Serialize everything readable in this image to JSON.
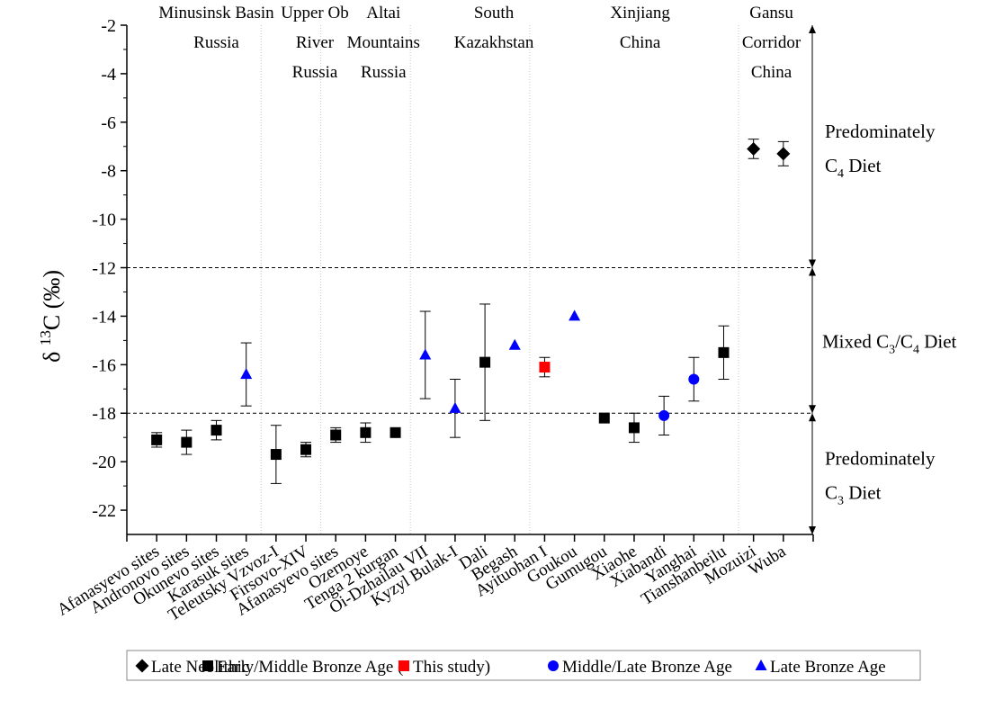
{
  "chart_data": {
    "type": "scatter",
    "title": "",
    "xlabel": "",
    "ylabel": {
      "prefix": "δ",
      "sup": "13",
      "main": "C (‰)"
    },
    "ylim": [
      -23,
      -2
    ],
    "yticks": [
      -2,
      -4,
      -6,
      -8,
      -10,
      -12,
      -14,
      -16,
      -18,
      -20,
      -22
    ],
    "grid": false,
    "categories": [
      "Afanasyevo sites",
      "Andronovo sites",
      "Okunevo sites",
      "Karasuk sites",
      "Teleutsky Vzvoz-I",
      "Firsovo-XIV",
      "Afanasyevo sites",
      "Ozernoye",
      "Tenga 2 kurgan",
      "Oi-Dzhailau VII",
      "Kyzyl Bulak-I",
      "Dali",
      "Begash",
      "Ayituohan I",
      "Goukou",
      "Gumugou",
      "Xiaohe",
      "Xiabandi",
      "Yanghai",
      "Tianshanbeilu",
      "Mozuizi",
      "Wuba"
    ],
    "series": [
      {
        "name": "Late Neolithic",
        "marker": "diamond",
        "color": "#000000",
        "points": [
          {
            "x": "Mozuizi",
            "y": -7.1,
            "err": 0.4
          },
          {
            "x": "Wuba",
            "y": -7.3,
            "err": 0.5
          }
        ]
      },
      {
        "name": "Early/Middle Bronze Age (",
        "marker": "square",
        "color": "#000000",
        "points": [
          {
            "x": "Afanasyevo sites",
            "y": -19.1,
            "err": 0.3
          },
          {
            "x": "Andronovo sites",
            "y": -19.2,
            "err": 0.5
          },
          {
            "x": "Okunevo sites",
            "y": -18.7,
            "err": 0.4
          },
          {
            "x": "Teleutsky Vzvoz-I",
            "y": -19.7,
            "err": 1.2
          },
          {
            "x": "Firsovo-XIV",
            "y": -19.5,
            "err": 0.3
          },
          {
            "x": "Afanasyevo sites",
            "y": -18.9,
            "err": 0.3
          },
          {
            "x": "Ozernoye",
            "y": -18.8,
            "err": 0.4
          },
          {
            "x": "Tenga 2 kurgan",
            "y": -18.8,
            "err": 0
          },
          {
            "x": "Dali",
            "y": -15.9,
            "err": 2.4
          },
          {
            "x": "Gumugou",
            "y": -18.2,
            "err": 0
          },
          {
            "x": "Xiaohe",
            "y": -18.6,
            "err": 0.6
          },
          {
            "x": "Tianshanbeilu",
            "y": -15.5,
            "err": 1.1
          }
        ]
      },
      {
        "name": "This study)",
        "marker": "square",
        "color": "#ff0000",
        "points": [
          {
            "x": "Ayituohan I",
            "y": -16.1,
            "err": 0.4
          }
        ]
      },
      {
        "name": "Middle/Late Bronze Age",
        "marker": "circle",
        "color": "#0000ff",
        "points": [
          {
            "x": "Xiabandi",
            "y": -18.1,
            "err": 0.8
          },
          {
            "x": "Yanghai",
            "y": -16.6,
            "err": 0.9
          }
        ]
      },
      {
        "name": "Late Bronze Age",
        "marker": "triangle",
        "color": "#0000ff",
        "points": [
          {
            "x": "Karasuk sites",
            "y": -16.4,
            "err": 1.3
          },
          {
            "x": "Oi-Dzhailau VII",
            "y": -15.6,
            "err": 1.8
          },
          {
            "x": "Kyzyl Bulak-I",
            "y": -17.8,
            "err": 1.2
          },
          {
            "x": "Begash",
            "y": -15.2,
            "err": 0
          },
          {
            "x": "Goukou",
            "y": -14.0,
            "err": 0
          }
        ]
      }
    ],
    "thresholds": [
      -12,
      -18
    ],
    "region_dividers_after": [
      4,
      6,
      9,
      13,
      20
    ],
    "region_labels": [
      {
        "lines": [
          "Minusinsk Basin",
          "Russia"
        ],
        "center_index": 2
      },
      {
        "lines": [
          "Upper Ob",
          "River",
          "Russia"
        ],
        "center_index": 5.3
      },
      {
        "lines": [
          "Altai",
          "Mountains",
          "Russia"
        ],
        "center_index": 7.6
      },
      {
        "lines": [
          "South",
          "Kazakhstan"
        ],
        "center_index": 11.3
      },
      {
        "lines": [
          "Xinjiang",
          "China"
        ],
        "center_index": 16.2
      },
      {
        "lines": [
          "Gansu",
          "Corridor",
          "China"
        ],
        "center_index": 20.6
      }
    ],
    "diet_zones": [
      {
        "lines": [
          "Predominately",
          "C|4| Diet"
        ],
        "from": -2,
        "to": -12
      },
      {
        "lines": [
          "Mixed C|3|/C|4| Diet"
        ],
        "from": -12,
        "to": -18
      },
      {
        "lines": [
          "Predominately",
          "C|3| Diet"
        ],
        "from": -18,
        "to": -23
      }
    ],
    "legend_placement": "bottom",
    "legend": [
      {
        "label": "Late Neolithic",
        "marker": "diamond",
        "color": "#000000"
      },
      {
        "label": "Early/Middle Bronze Age (",
        "marker": "square",
        "color": "#000000"
      },
      {
        "label": "This study)",
        "marker": "square",
        "color": "#ff0000"
      },
      {
        "label": "Middle/Late Bronze Age",
        "marker": "circle",
        "color": "#0000ff"
      },
      {
        "label": "Late Bronze Age",
        "marker": "triangle",
        "color": "#0000ff"
      }
    ]
  }
}
